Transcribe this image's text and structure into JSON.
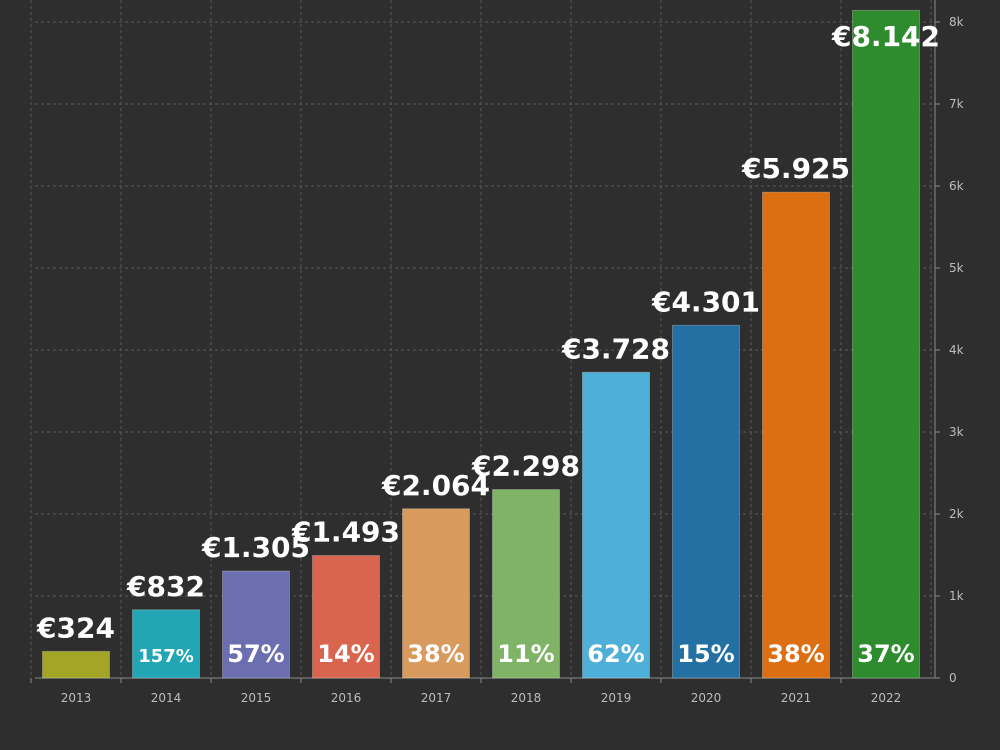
{
  "chart_data": {
    "type": "bar",
    "categories": [
      "2013",
      "2014",
      "2015",
      "2016",
      "2017",
      "2018",
      "2019",
      "2020",
      "2021",
      "2022"
    ],
    "values": [
      324,
      832,
      1305,
      1493,
      2064,
      2298,
      3728,
      4301,
      5925,
      8142
    ],
    "value_labels": [
      "€324",
      "€832",
      "€1.305",
      "€1.493",
      "€2.064",
      "€2.298",
      "€3.728",
      "€4.301",
      "€5.925",
      "€8.142"
    ],
    "growth_labels": [
      "",
      "157%",
      "57%",
      "14%",
      "38%",
      "11%",
      "62%",
      "15%",
      "38%",
      "37%"
    ],
    "colors": [
      "#a3a524",
      "#22a6b5",
      "#6b6fb0",
      "#d9654f",
      "#d99a5e",
      "#7fb365",
      "#4eb0d8",
      "#2570a3",
      "#db6f12",
      "#2e8b2e"
    ],
    "ylim": [
      0,
      8000
    ],
    "y_ticks": [
      0,
      1000,
      2000,
      3000,
      4000,
      5000,
      6000,
      7000,
      8000
    ],
    "y_tick_labels": [
      "0",
      "1k",
      "2k",
      "3k",
      "4k",
      "5k",
      "6k",
      "7k",
      "8k"
    ],
    "y_axis_position": "right",
    "grid": true,
    "title": "",
    "xlabel": "",
    "ylabel": ""
  }
}
